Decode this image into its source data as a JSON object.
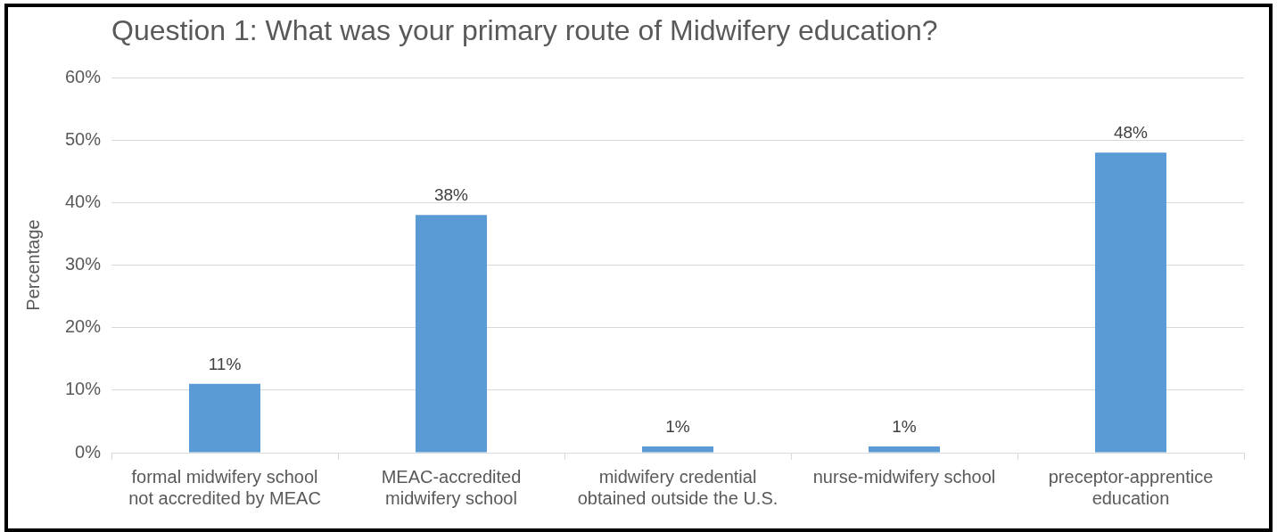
{
  "chart_data": {
    "type": "bar",
    "title": "Question 1: What was your primary route of Midwifery education?",
    "ylabel": "Percentage",
    "categories": [
      "formal midwifery school not accredited by MEAC",
      "MEAC-accredited midwifery school",
      "midwifery credential obtained outside the U.S.",
      "nurse-midwifery school",
      "preceptor-apprentice education"
    ],
    "values": [
      11,
      38,
      1,
      1,
      48
    ],
    "color": "#5b9bd5",
    "value_labels": [
      "11%",
      "38%",
      "1%",
      "1%",
      "48%"
    ],
    "ylim": [
      0,
      60
    ],
    "yticks": [
      {
        "value": 0,
        "label": "0%"
      },
      {
        "value": 10,
        "label": "10%"
      },
      {
        "value": 20,
        "label": "20%"
      },
      {
        "value": 30,
        "label": "30%"
      },
      {
        "value": 40,
        "label": "40%"
      },
      {
        "value": 50,
        "label": "50%"
      },
      {
        "value": 60,
        "label": "60%"
      }
    ],
    "grid": "y"
  }
}
